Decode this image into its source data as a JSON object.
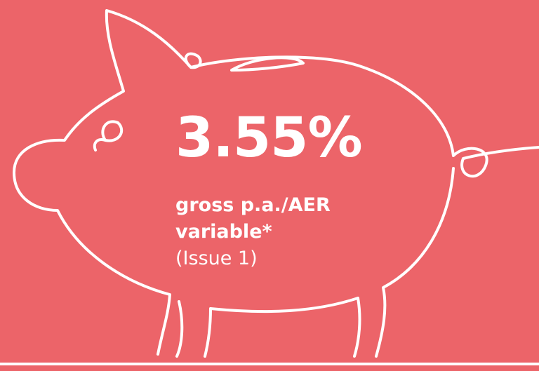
{
  "rate": "3.55%",
  "rate_type": "gross p.a./AER",
  "rate_basis": "variable*",
  "issue": "(Issue 1)"
}
